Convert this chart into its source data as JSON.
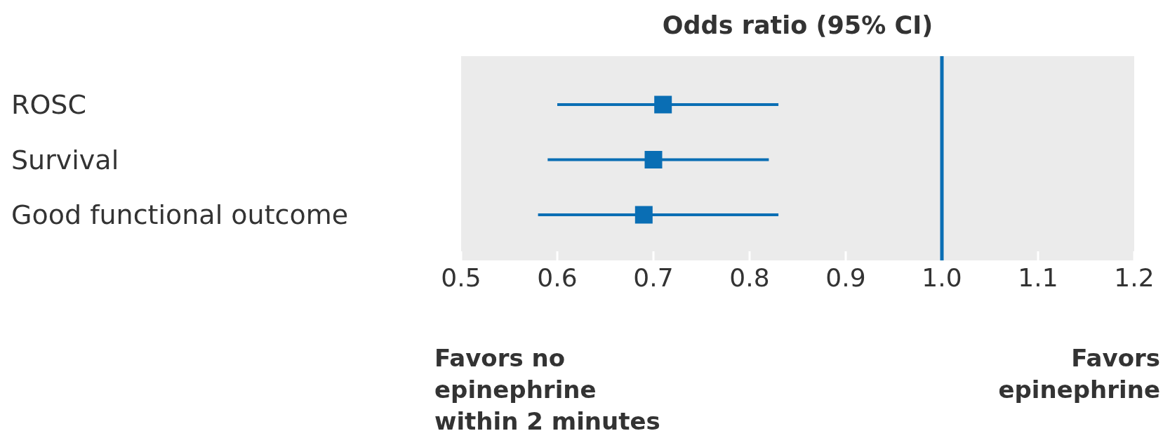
{
  "chart_data": {
    "type": "scatter",
    "orientation": "horizontal",
    "title": "Odds ratio (95% CI)",
    "categories": [
      "ROSC",
      "Survival",
      "Good functional outcome"
    ],
    "values": [
      0.71,
      0.7,
      0.69
    ],
    "errors": [
      [
        0.6,
        0.83
      ],
      [
        0.59,
        0.82
      ],
      [
        0.58,
        0.83
      ]
    ],
    "color": "#0a6eb4",
    "marker": "square",
    "grid": false,
    "xlim": [
      0.5,
      1.2
    ],
    "xticks": [
      0.5,
      0.6,
      0.7,
      0.8,
      0.9,
      {
        "value": 1,
        "label": "1.0"
      },
      1.1,
      1.2
    ],
    "ref_lines": [
      {
        "axis": "x",
        "value": 1,
        "color": "#0a6eb4"
      }
    ],
    "annotations": [
      "Favors no\nepinephrine\nwithin 2 minutes",
      "Favors\nepinephrine"
    ]
  }
}
